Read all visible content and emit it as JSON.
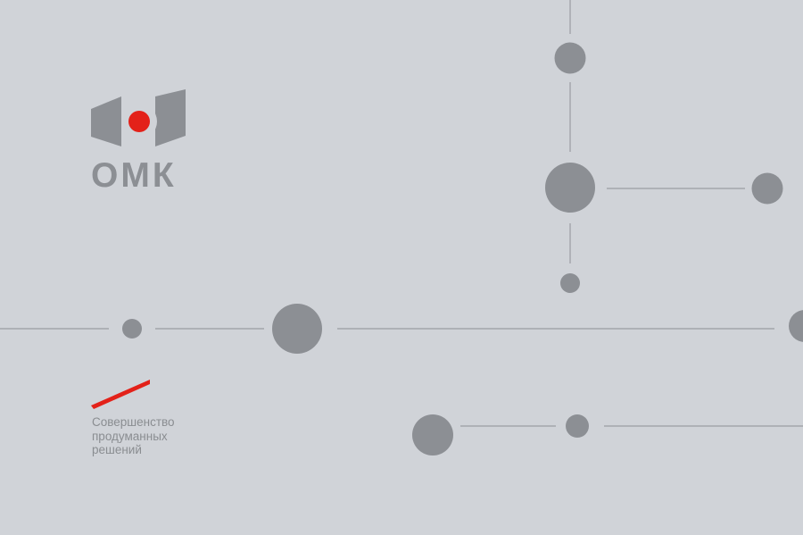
{
  "brand": {
    "name": "ОМК",
    "accent_color": "#e32119",
    "mark_color": "#8c8f94",
    "background_color": "#d0d3d8"
  },
  "tagline": {
    "lines": [
      "Совершенство",
      "продуманных",
      "решений"
    ]
  },
  "decor": {
    "node_color": "#8c8f94",
    "connector_color": "#9a9da2"
  }
}
